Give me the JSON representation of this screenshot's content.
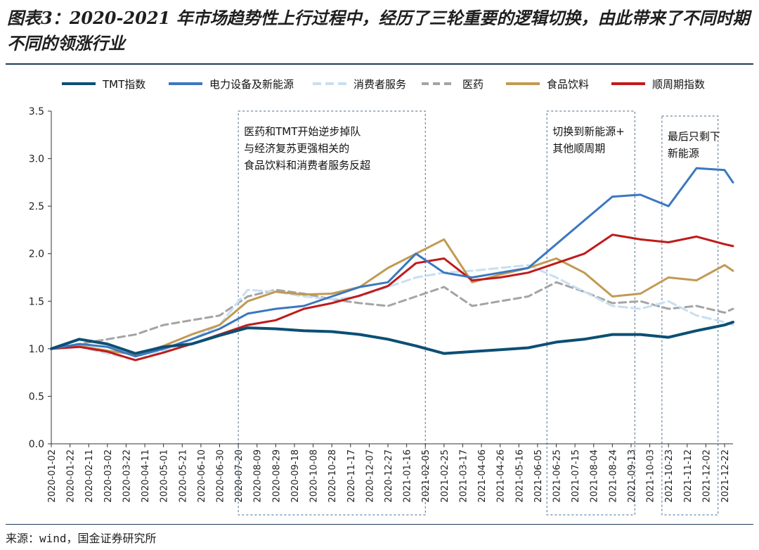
{
  "title": "图表3：2020-2021 年市场趋势性上行过程中，经历了三轮重要的逻辑切换，由此带来了不同时期不同的领涨行业",
  "source": "来源：wind，国金证券研究所",
  "chart_data": {
    "type": "line",
    "ylim": [
      0.0,
      3.5
    ],
    "yticks": [
      "0.0",
      "0.5",
      "1.0",
      "1.5",
      "2.0",
      "2.5",
      "3.0",
      "3.5"
    ],
    "x_labels": [
      "2020-01-02",
      "2020-01-22",
      "2020-02-11",
      "2020-03-02",
      "2020-03-22",
      "2020-04-11",
      "2020-05-01",
      "2020-05-21",
      "2020-06-10",
      "2020-06-30",
      "2020-07-20",
      "2020-08-09",
      "2020-08-29",
      "2020-09-18",
      "2020-10-08",
      "2020-10-28",
      "2020-11-17",
      "2020-12-07",
      "2020-12-27",
      "2021-01-16",
      "2021-02-05",
      "2021-02-25",
      "2021-03-17",
      "2021-04-06",
      "2021-04-26",
      "2021-05-16",
      "2021-06-05",
      "2021-06-25",
      "2021-07-15",
      "2021-08-04",
      "2021-08-24",
      "2021-09-13",
      "2021-10-03",
      "2021-10-23",
      "2021-11-12",
      "2021-12-02",
      "2021-12-22"
    ],
    "x": [
      "2020-01-02",
      "2020-02-01",
      "2020-03-02",
      "2020-04-01",
      "2020-05-01",
      "2020-05-31",
      "2020-06-30",
      "2020-07-30",
      "2020-08-29",
      "2020-09-28",
      "2020-10-28",
      "2020-11-27",
      "2020-12-27",
      "2021-01-26",
      "2021-02-25",
      "2021-03-27",
      "2021-04-26",
      "2021-05-26",
      "2021-06-25",
      "2021-07-25",
      "2021-08-24",
      "2021-09-23",
      "2021-10-23",
      "2021-11-22",
      "2021-12-22",
      "2021-12-31"
    ],
    "series": [
      {
        "name": "TMT指数",
        "color": "#0b4f74",
        "dash": "",
        "width": 4,
        "values": [
          1.0,
          1.1,
          1.05,
          0.95,
          1.02,
          1.05,
          1.14,
          1.22,
          1.21,
          1.19,
          1.18,
          1.15,
          1.1,
          1.03,
          0.95,
          0.97,
          0.99,
          1.01,
          1.07,
          1.1,
          1.15,
          1.15,
          1.12,
          1.19,
          1.25,
          1.28
        ]
      },
      {
        "name": "电力设备及新能源",
        "color": "#3b77c0",
        "dash": "",
        "width": 3,
        "values": [
          1.0,
          1.05,
          1.02,
          0.92,
          1.0,
          1.1,
          1.21,
          1.37,
          1.42,
          1.45,
          1.55,
          1.65,
          1.7,
          2.0,
          1.8,
          1.75,
          1.8,
          1.85,
          2.1,
          2.35,
          2.6,
          2.62,
          2.5,
          2.9,
          2.88,
          2.75
        ]
      },
      {
        "name": "消费者服务",
        "color": "#c8dff2",
        "dash": "12,6",
        "width": 3,
        "values": [
          1.0,
          1.02,
          0.95,
          0.88,
          0.98,
          1.1,
          1.25,
          1.62,
          1.6,
          1.55,
          1.52,
          1.55,
          1.65,
          1.75,
          1.8,
          1.82,
          1.85,
          1.88,
          1.75,
          1.6,
          1.45,
          1.42,
          1.5,
          1.35,
          1.28,
          1.25
        ]
      },
      {
        "name": "医药",
        "color": "#a4a4a4",
        "dash": "10,6",
        "width": 3,
        "values": [
          1.0,
          1.05,
          1.1,
          1.15,
          1.25,
          1.3,
          1.35,
          1.55,
          1.62,
          1.58,
          1.52,
          1.48,
          1.45,
          1.55,
          1.65,
          1.45,
          1.5,
          1.55,
          1.7,
          1.6,
          1.48,
          1.5,
          1.42,
          1.45,
          1.38,
          1.42
        ]
      },
      {
        "name": "食品饮料",
        "color": "#c19a52",
        "dash": "",
        "width": 3,
        "values": [
          1.0,
          1.03,
          0.98,
          0.94,
          1.03,
          1.15,
          1.25,
          1.5,
          1.6,
          1.57,
          1.58,
          1.65,
          1.85,
          2.0,
          2.15,
          1.7,
          1.78,
          1.85,
          1.95,
          1.8,
          1.55,
          1.58,
          1.75,
          1.72,
          1.88,
          1.82
        ]
      },
      {
        "name": "顺周期指数",
        "color": "#c01a1a",
        "dash": "",
        "width": 3,
        "values": [
          1.0,
          1.02,
          0.97,
          0.88,
          0.96,
          1.05,
          1.15,
          1.25,
          1.3,
          1.42,
          1.48,
          1.56,
          1.66,
          1.9,
          1.95,
          1.72,
          1.75,
          1.8,
          1.9,
          2.0,
          2.2,
          2.15,
          2.12,
          2.18,
          2.1,
          2.08
        ]
      }
    ],
    "annotations": [
      {
        "text": [
          "医药和TMT开始逆步掉队",
          "与经济复苏更强相关的",
          "食品饮料和消费者服务反超"
        ],
        "from": "2020-07-20",
        "to": "2021-02-05"
      },
      {
        "text": [
          "切换到新能源+",
          "其他顺周期"
        ],
        "from": "2021-06-15",
        "to": "2021-09-17"
      },
      {
        "text": [
          "最后只剩下",
          "新能源"
        ],
        "from": "2021-10-16",
        "to": "2021-12-15"
      }
    ],
    "grid": false,
    "legend_position": "top"
  }
}
